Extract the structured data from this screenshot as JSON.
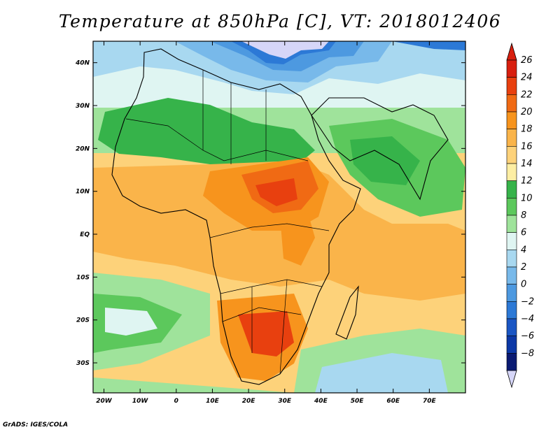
{
  "title": "Temperature at 850hPa [C], VT: 2018012406",
  "credit": "GrADS: IGES/COLA",
  "map": {
    "region": "Africa and Middle East",
    "lon_range": [
      -23,
      80
    ],
    "lat_range": [
      -37,
      45
    ],
    "lat_labels": [
      {
        "lat": 40,
        "label": "40N"
      },
      {
        "lat": 30,
        "label": "30N"
      },
      {
        "lat": 20,
        "label": "20N"
      },
      {
        "lat": 10,
        "label": "10N"
      },
      {
        "lat": 0,
        "label": "EQ"
      },
      {
        "lat": -10,
        "label": "10S"
      },
      {
        "lat": -20,
        "label": "20S"
      },
      {
        "lat": -30,
        "label": "30S"
      }
    ],
    "lon_labels": [
      {
        "lon": -20,
        "label": "20W"
      },
      {
        "lon": -10,
        "label": "10W"
      },
      {
        "lon": 0,
        "label": "0"
      },
      {
        "lon": 10,
        "label": "10E"
      },
      {
        "lon": 20,
        "label": "20E"
      },
      {
        "lon": 30,
        "label": "30E"
      },
      {
        "lon": 40,
        "label": "40E"
      },
      {
        "lon": 50,
        "label": "50E"
      },
      {
        "lon": 60,
        "label": "60E"
      },
      {
        "lon": 70,
        "label": "70E"
      }
    ]
  },
  "colorbar": {
    "levels": [
      {
        "label": "26",
        "color": "#d81f0f"
      },
      {
        "label": "24",
        "color": "#e8400f"
      },
      {
        "label": "22",
        "color": "#f06a14"
      },
      {
        "label": "20",
        "color": "#f7941d"
      },
      {
        "label": "18",
        "color": "#fab44a"
      },
      {
        "label": "16",
        "color": "#fdd27a"
      },
      {
        "label": "14",
        "color": "#fdeea3"
      },
      {
        "label": "12",
        "color": "#36b34a"
      },
      {
        "label": "10",
        "color": "#5cc85c"
      },
      {
        "label": "8",
        "color": "#9fe39b"
      },
      {
        "label": "6",
        "color": "#dff5f2"
      },
      {
        "label": "4",
        "color": "#a8d8f0"
      },
      {
        "label": "2",
        "color": "#78b9ea"
      },
      {
        "label": "0",
        "color": "#4d99e0"
      },
      {
        "label": "−2",
        "color": "#2c79d6"
      },
      {
        "label": "−4",
        "color": "#1a56c4"
      },
      {
        "label": "−6",
        "color": "#0c38a6"
      },
      {
        "label": "−8",
        "color": "#0a1a72"
      }
    ],
    "top_triangle_color": "#d81f0f",
    "bottom_triangle_color": "#d6d6f8"
  }
}
